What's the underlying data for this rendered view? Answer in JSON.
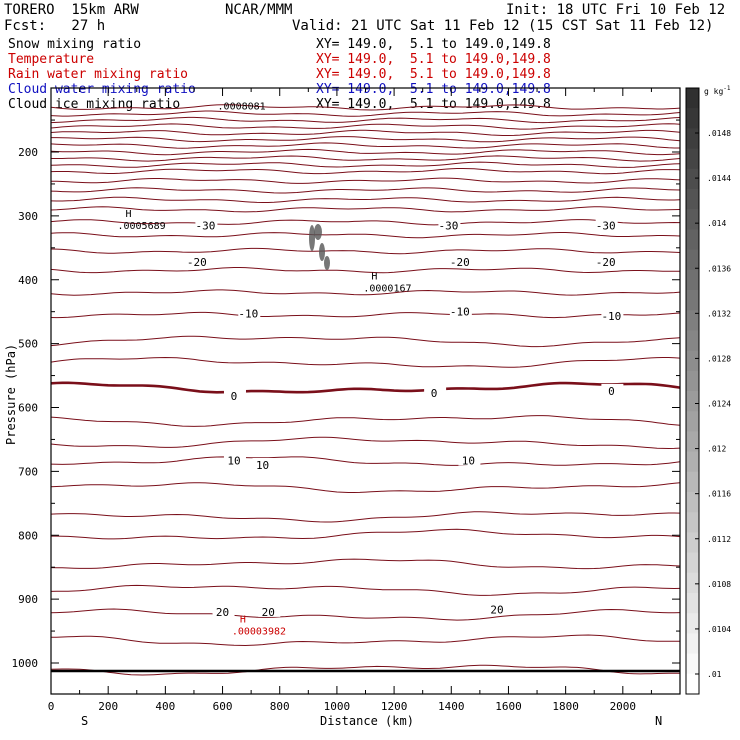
{
  "header": {
    "model": "TORERO  15km ARW",
    "center": "NCAR/MMM",
    "init": "Init: 18 UTC Fri 10 Feb 12",
    "fcst": "Fcst:   27 h",
    "valid": "Valid: 21 UTC Sat 11 Feb 12 (15 CST Sat 11 Feb 12)"
  },
  "fields": [
    {
      "name": "Snow mixing ratio",
      "xy": "",
      "color": "#000000"
    },
    {
      "name": "Temperature",
      "xy": "XY= 149.0,  5.1 to 149.0,149.8",
      "color": "#cc0000"
    },
    {
      "name": "Rain water mixing ratio",
      "xy": "XY= 149.0,  5.1 to 149.0,149.8",
      "color": "#cc0000"
    },
    {
      "name": "Cloud water mixing ratio",
      "xy": "XY= 149.0,  5.1 to 149.0,149.8",
      "color": "#1010c0"
    },
    {
      "name": "Cloud ice mixing ratio",
      "xy": "XY= 149.0,  5.1 to 149.0,149.8",
      "color": "#000000"
    }
  ],
  "first_xy": "XY= 149.0,  5.1 to 149.0,149.8",
  "chart_data": {
    "type": "contour cross-section",
    "xlabel": "Distance (km)",
    "ylabel": "Pressure (hPa)",
    "x_ticks": [
      "0",
      "200",
      "400",
      "600",
      "800",
      "1000",
      "1200",
      "1400",
      "1600",
      "1800",
      "2000"
    ],
    "y_ticks": [
      "200",
      "300",
      "400",
      "500",
      "600",
      "700",
      "800",
      "900",
      "1000"
    ],
    "xlim": [
      0,
      2200
    ],
    "ylim": [
      1050,
      100
    ],
    "left_label": "S",
    "right_label": "N",
    "colorbar": {
      "unit": "g kg",
      "unit_sup": "-1",
      "ticks": [
        ".0148",
        ".0144",
        ".014",
        ".0136",
        ".0132",
        ".0128",
        ".0124",
        ".012",
        ".0116",
        ".0112",
        ".0108",
        ".0104",
        ".01"
      ],
      "color_top": "#303030",
      "color_bottom": "#ffffff"
    },
    "temperature_labels": [
      {
        "text": "-30",
        "x": 540,
        "p": 315
      },
      {
        "text": "-30",
        "x": 1390,
        "p": 315
      },
      {
        "text": "-30",
        "x": 1940,
        "p": 315
      },
      {
        "text": "-20",
        "x": 510,
        "p": 372
      },
      {
        "text": "-20",
        "x": 1430,
        "p": 372
      },
      {
        "text": "-20",
        "x": 1940,
        "p": 372
      },
      {
        "text": "-10",
        "x": 690,
        "p": 453
      },
      {
        "text": "-10",
        "x": 1430,
        "p": 450
      },
      {
        "text": "-10",
        "x": 1960,
        "p": 457
      },
      {
        "text": "0",
        "x": 640,
        "p": 582
      },
      {
        "text": "0",
        "x": 1340,
        "p": 577
      },
      {
        "text": "0",
        "x": 1960,
        "p": 574
      },
      {
        "text": "10",
        "x": 640,
        "p": 683
      },
      {
        "text": "10",
        "x": 740,
        "p": 690
      },
      {
        "text": "10",
        "x": 1460,
        "p": 683
      },
      {
        "text": "20",
        "x": 600,
        "p": 920
      },
      {
        "text": "20",
        "x": 760,
        "p": 920
      },
      {
        "text": "20",
        "x": 1560,
        "p": 916
      }
    ],
    "maxima_labels": [
      {
        "field": "cloud_ice",
        "text": "H",
        "value": ".0005689",
        "x": 250,
        "p": 305,
        "color": "#000000"
      },
      {
        "field": "cloud_ice",
        "text": "H",
        "value": ".0000167",
        "x": 1110,
        "p": 403,
        "color": "#000000"
      },
      {
        "field": "cloud_ice",
        "text": "",
        "value": ".0008081",
        "x": 600,
        "p": 118,
        "color": "#000000"
      },
      {
        "field": "rain",
        "text": "H",
        "value": ".00003982",
        "x": 650,
        "p": 940,
        "color": "#cc0000"
      }
    ],
    "isotherm_levels": [
      130,
      140,
      150,
      160,
      170,
      180,
      190,
      200,
      210,
      220,
      230,
      245,
      260,
      275,
      290,
      310,
      330,
      355,
      385,
      420,
      455,
      495,
      530,
      570,
      620,
      655,
      685,
      725,
      770,
      800,
      845,
      885,
      925,
      965,
      1010
    ]
  }
}
